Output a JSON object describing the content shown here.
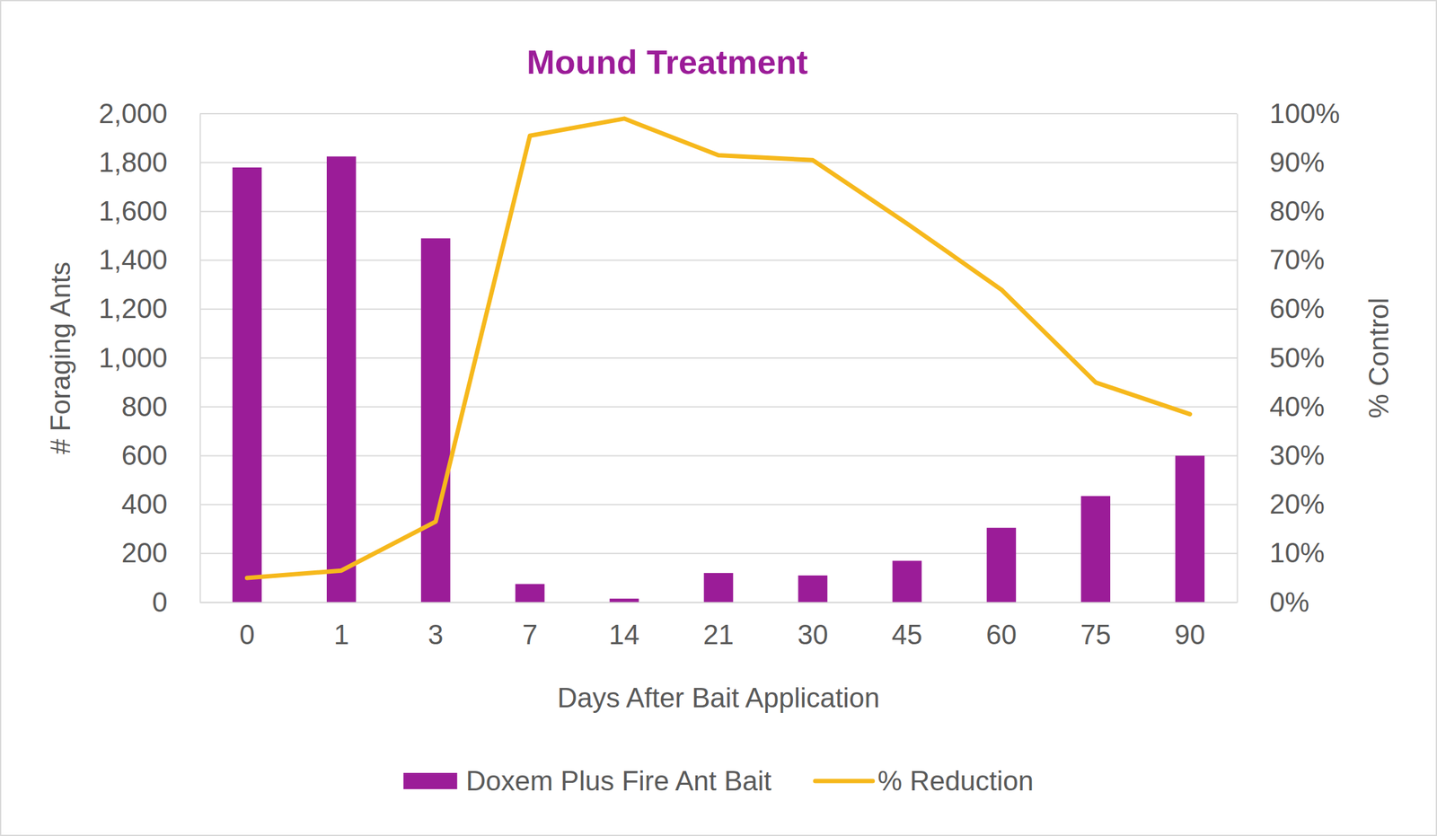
{
  "chart_data": {
    "type": "bar",
    "title": "Mound Treatment",
    "x_label": "Days After Bait Application",
    "y_label": "# Foraging Ants",
    "y2_label": "% Control",
    "categories": [
      "0",
      "1",
      "3",
      "7",
      "14",
      "21",
      "30",
      "45",
      "60",
      "75",
      "90"
    ],
    "series": [
      {
        "name": "Doxem Plus Fire Ant Bait",
        "type": "bar",
        "color": "#9b1c98",
        "values": [
          1780,
          1825,
          1490,
          75,
          15,
          120,
          110,
          170,
          305,
          435,
          600
        ]
      },
      {
        "name": "% Reduction",
        "type": "line",
        "color": "#f6b81c",
        "axis": "y2",
        "values": [
          5,
          6.5,
          16.5,
          95.5,
          99,
          91.5,
          90.5,
          77.5,
          64,
          45,
          38.5
        ]
      }
    ],
    "ylim": [
      0,
      2000
    ],
    "yticks": [
      0,
      200,
      400,
      600,
      800,
      {
        "value": 1000,
        "label": "1,000"
      },
      {
        "value": 1200,
        "label": "1,200"
      },
      {
        "value": 1400,
        "label": "1,400"
      },
      {
        "value": 1600,
        "label": "1,600"
      },
      {
        "value": 1800,
        "label": "1,800"
      },
      {
        "value": 2000,
        "label": "2,000"
      }
    ],
    "y2lim": [
      0,
      100
    ],
    "y2ticks": [
      {
        "value": 0,
        "label": "0%"
      },
      {
        "value": 10,
        "label": "10%"
      },
      {
        "value": 20,
        "label": "20%"
      },
      {
        "value": 30,
        "label": "30%"
      },
      {
        "value": 40,
        "label": "40%"
      },
      {
        "value": 50,
        "label": "50%"
      },
      {
        "value": 60,
        "label": "60%"
      },
      {
        "value": 70,
        "label": "70%"
      },
      {
        "value": 80,
        "label": "80%"
      },
      {
        "value": 90,
        "label": "90%"
      },
      {
        "value": 100,
        "label": "100%"
      }
    ],
    "grid": true,
    "legend": "bottom"
  }
}
